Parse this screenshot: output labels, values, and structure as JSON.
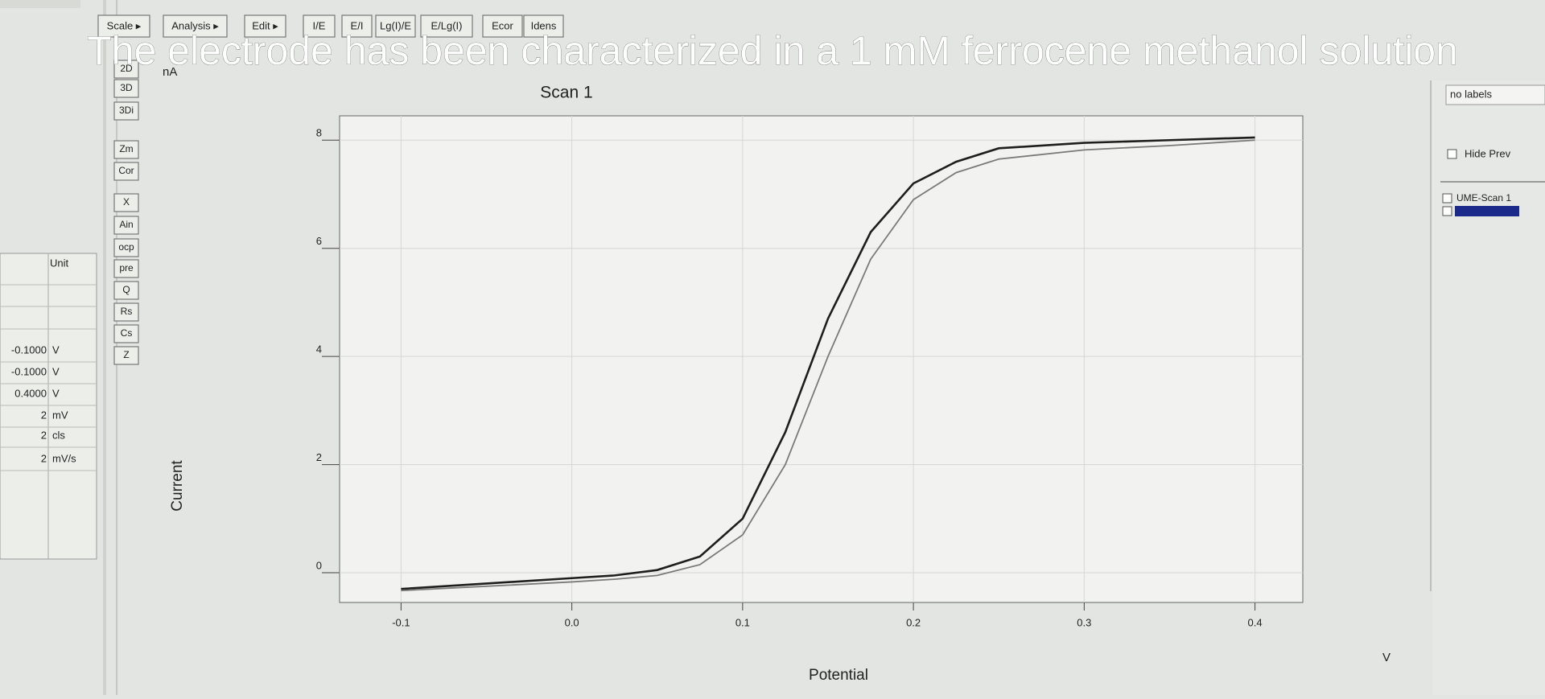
{
  "caption": "The electrode has been characterized in a 1 mM ferrocene methanol solution",
  "toolbar": [
    "Scale ▸",
    "Analysis ▸",
    "Edit ▸",
    "I/E",
    "E/I",
    "Lg(I)/E",
    "E/Lg(I)",
    "Ecor",
    "Idens"
  ],
  "side_buttons": [
    "2D",
    "3D",
    "3Di",
    "Zm",
    "Cor",
    "X",
    "Ain",
    "ocp",
    "pre",
    "Q",
    "Rs",
    "Cs",
    "Z"
  ],
  "param_table": {
    "header": "Unit",
    "rows": [
      [
        "-0.1000",
        "V"
      ],
      [
        "-0.1000",
        "V"
      ],
      [
        "0.4000",
        "V"
      ],
      [
        "2",
        "mV"
      ],
      [
        "2",
        "cls"
      ],
      [
        "2",
        "mV/s"
      ]
    ]
  },
  "right_panel": {
    "labels_box": "no labels",
    "hide_prev": "Hide Prev"
  },
  "chart_data": {
    "type": "line",
    "title": "Scan 1",
    "y_label": "Current",
    "y_unit": "nA",
    "x_label": "Potential",
    "x_unit": "V",
    "x": [
      -0.1,
      -0.05,
      0.0,
      0.025,
      0.05,
      0.075,
      0.1,
      0.125,
      0.15,
      0.175,
      0.2,
      0.225,
      0.25,
      0.3,
      0.35,
      0.4
    ],
    "series": [
      {
        "name": "UME-Scan 1",
        "color": "#1e1e1e",
        "values": [
          -0.3,
          -0.2,
          -0.1,
          -0.05,
          0.05,
          0.3,
          1.0,
          2.6,
          4.7,
          6.3,
          7.2,
          7.6,
          7.85,
          7.95,
          8.0,
          8.05
        ]
      },
      {
        "color": "#7a7a7a",
        "values": [
          -0.33,
          -0.25,
          -0.17,
          -0.12,
          -0.05,
          0.15,
          0.7,
          2.0,
          4.0,
          5.8,
          6.9,
          7.4,
          7.65,
          7.82,
          7.9,
          8.0
        ]
      }
    ],
    "xlim": [
      -0.136,
      0.428
    ],
    "ylim": [
      -0.55,
      8.45
    ],
    "xticks": [
      -0.1,
      {
        "value": 0,
        "label": "0.0"
      },
      0.1,
      0.2,
      0.3,
      0.4
    ],
    "yticks": [
      0,
      2,
      4,
      6,
      8
    ],
    "grid": true
  }
}
